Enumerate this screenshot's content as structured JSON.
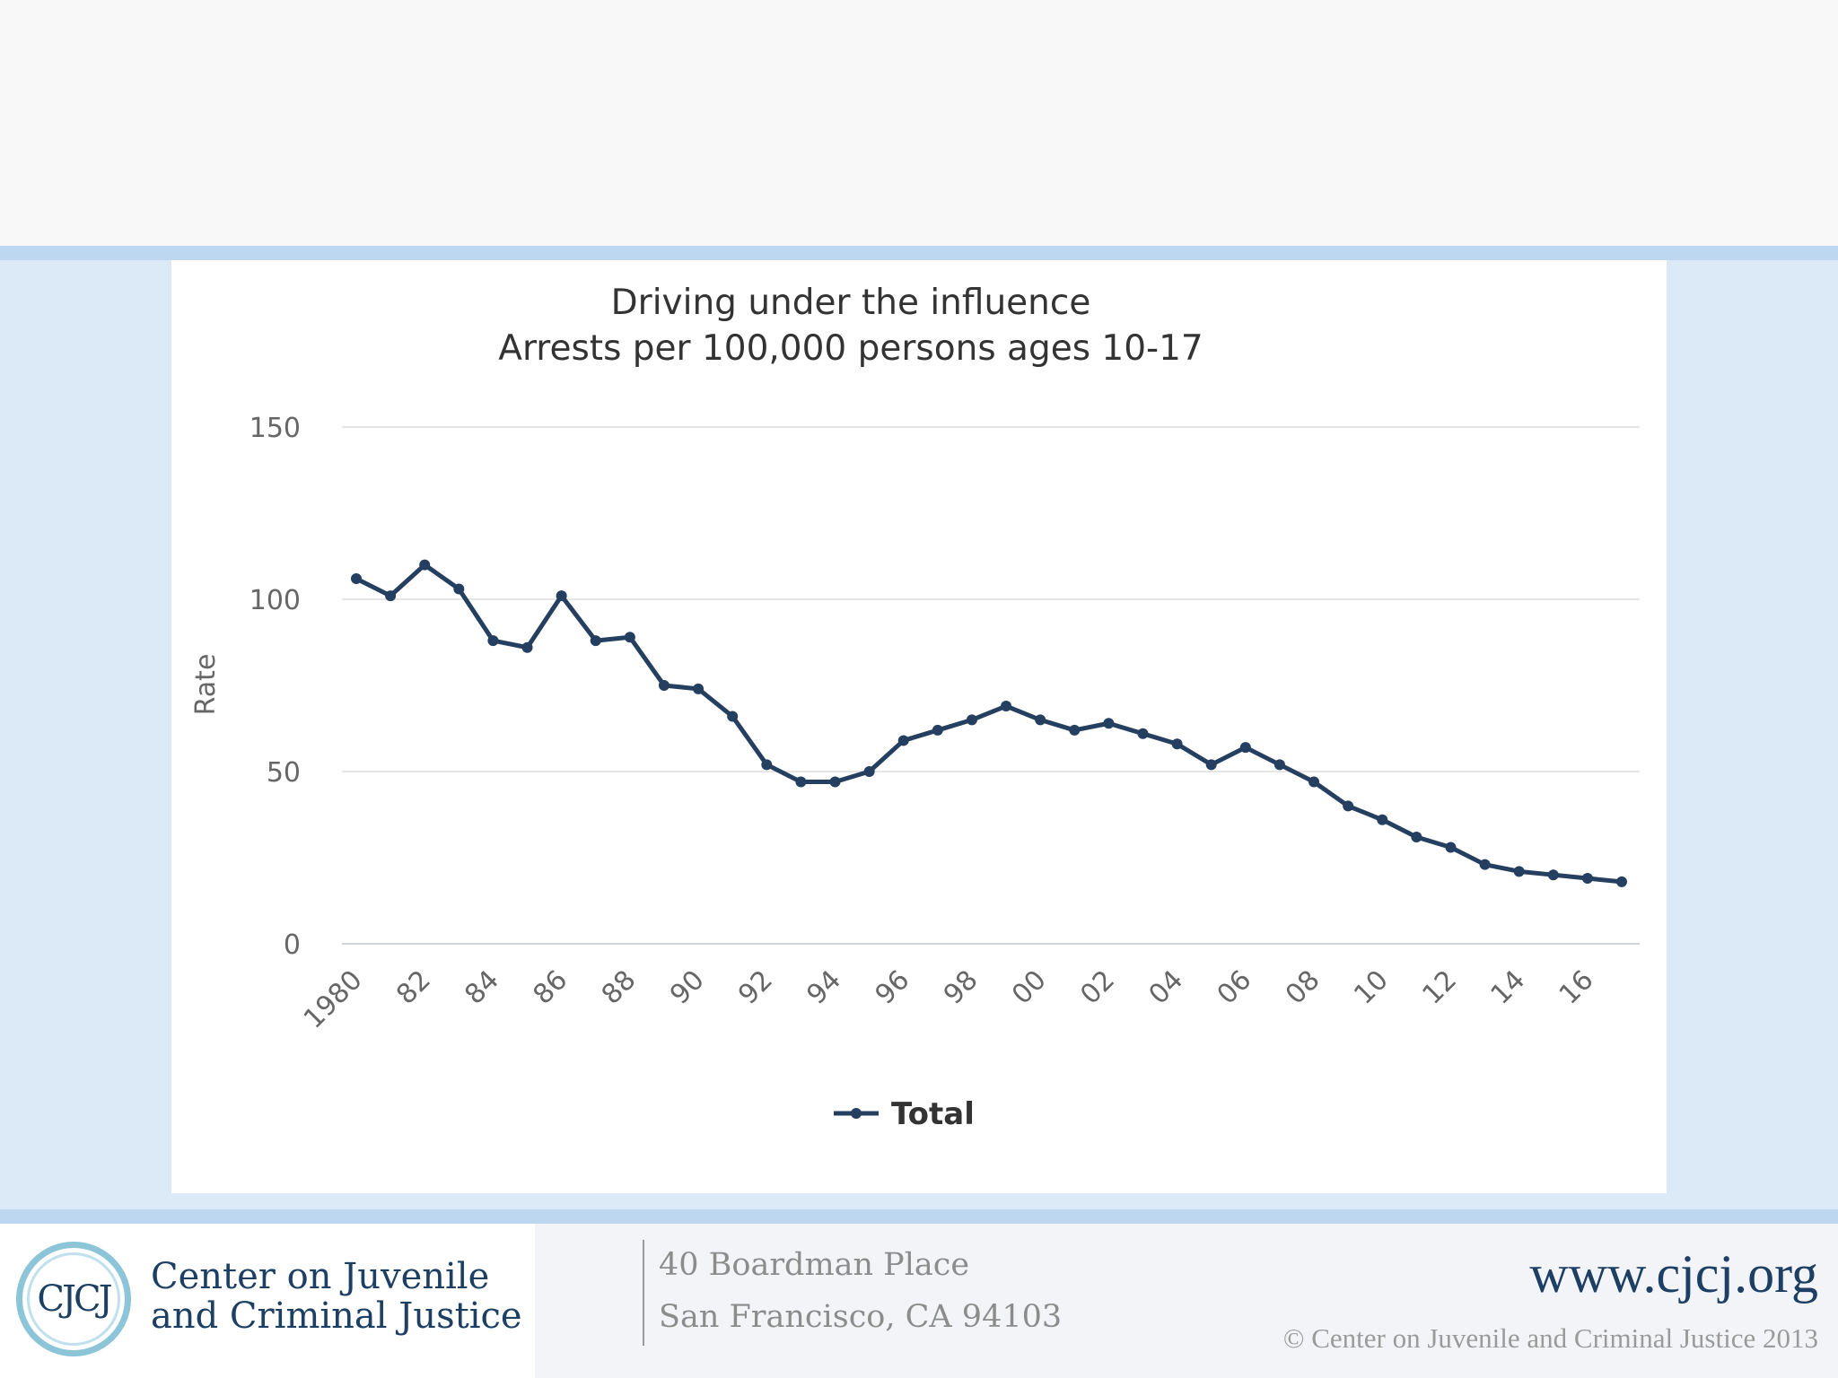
{
  "colors": {
    "series": "#243f5f",
    "grid": "#e6e6e6",
    "band": "#bdd7f0",
    "panel_bg": "#dce9f6",
    "brand": "#1c3f63"
  },
  "chart_data": {
    "type": "line",
    "title": "Driving under the influence",
    "subtitle": "Arrests per 100,000 persons ages 10-17",
    "xlabel": "",
    "ylabel": "Rate",
    "ylim": [
      0,
      150
    ],
    "y_ticks": [
      "0",
      "50",
      "100",
      "150"
    ],
    "y_tick_values": [
      0,
      50,
      100,
      150
    ],
    "x": [
      1980,
      1981,
      1982,
      1983,
      1984,
      1985,
      1986,
      1987,
      1988,
      1989,
      1990,
      1991,
      1992,
      1993,
      1994,
      1995,
      1996,
      1997,
      1998,
      1999,
      2000,
      2001,
      2002,
      2003,
      2004,
      2005,
      2006,
      2007,
      2008,
      2009,
      2010,
      2011,
      2012,
      2013,
      2014,
      2015,
      2016,
      2017
    ],
    "x_tick_labels": [
      "1980",
      "82",
      "84",
      "86",
      "88",
      "90",
      "92",
      "94",
      "96",
      "98",
      "00",
      "02",
      "04",
      "06",
      "08",
      "10",
      "12",
      "14",
      "16"
    ],
    "x_tick_years": [
      1980,
      1982,
      1984,
      1986,
      1988,
      1990,
      1992,
      1994,
      1996,
      1998,
      2000,
      2002,
      2004,
      2006,
      2008,
      2010,
      2012,
      2014,
      2016
    ],
    "grid": true,
    "legend_position": "bottom-center",
    "series": [
      {
        "name": "Total",
        "values": [
          106,
          101,
          110,
          103,
          88,
          86,
          101,
          88,
          89,
          75,
          74,
          66,
          52,
          47,
          47,
          50,
          59,
          62,
          65,
          69,
          65,
          62,
          64,
          61,
          58,
          52,
          57,
          52,
          47,
          40,
          36,
          31,
          28,
          23,
          21,
          20,
          19,
          18
        ]
      }
    ]
  },
  "footer": {
    "logo_initials": "CJCJ",
    "logo_name_line1": "Center on Juvenile",
    "logo_name_line2": "and Criminal Justice",
    "address_line1": "40 Boardman Place",
    "address_line2": "San Francisco, CA 94103",
    "website": "www.cjcj.org",
    "copyright": "© Center on Juvenile and Criminal Justice 2013"
  }
}
